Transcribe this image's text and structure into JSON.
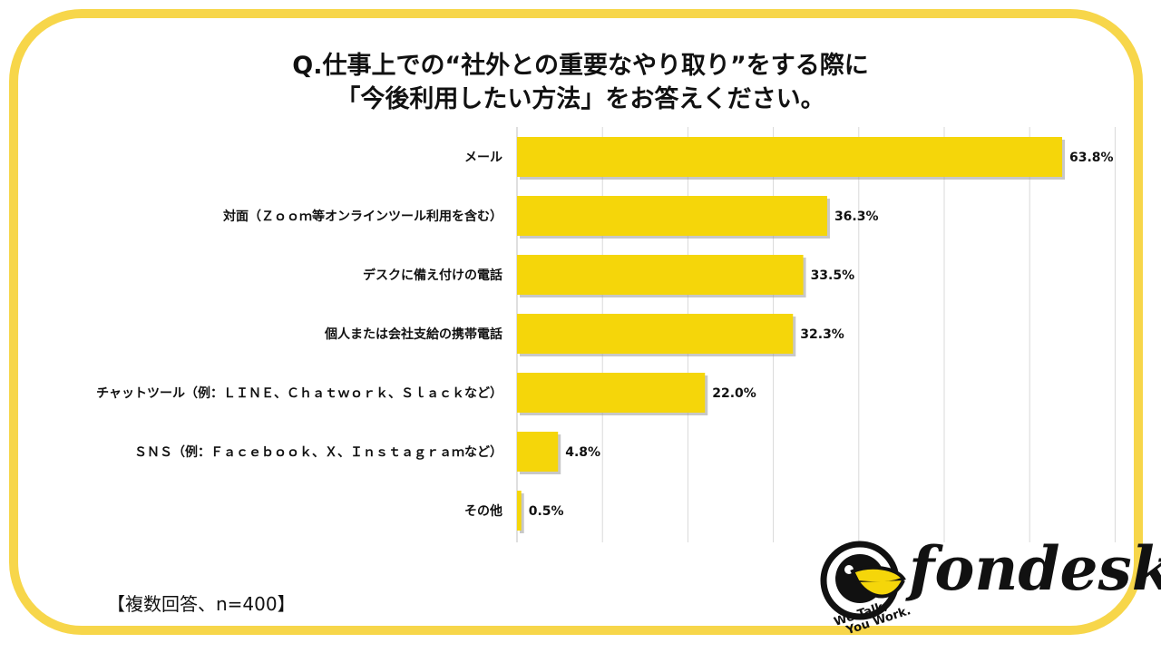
{
  "header": {
    "title_line1": "Q.仕事上での“社外との重要なやり取り”をする際に",
    "title_line2": "「今後利用したい方法」をお答えください。"
  },
  "footer": {
    "note": "【複数回答、n=400】"
  },
  "logo": {
    "word": "fondesk",
    "tagline_line1": "We Talk,",
    "tagline_line2": "You Work."
  },
  "colors": {
    "bar": "#f5d60a",
    "frame": "#f7d64a",
    "grid": "#d9d9d9"
  },
  "chart_data": {
    "type": "bar",
    "orientation": "horizontal",
    "categories": [
      "メール",
      "対面（Ｚｏｏｍ等オンラインツール利用を含む）",
      "デスクに備え付けの電話",
      "個人または会社支給の携帯電話",
      "チャットツール（例：ＬＩＮＥ、Ｃｈａｔｗｏｒｋ、Ｓｌａｃｋなど）",
      "ＳＮＳ（例：Ｆａｃｅｂｏｏｋ、Ｘ、Ｉｎｓｔａｇｒａｍなど）",
      "その他"
    ],
    "values": [
      63.8,
      36.3,
      33.5,
      32.3,
      22.0,
      4.8,
      0.5
    ],
    "value_labels": [
      "63.8%",
      "36.3%",
      "33.5%",
      "32.3%",
      "22.0%",
      "4.8%",
      "0.5%"
    ],
    "xlim": [
      0,
      70
    ],
    "grid": true,
    "legend": "none"
  }
}
